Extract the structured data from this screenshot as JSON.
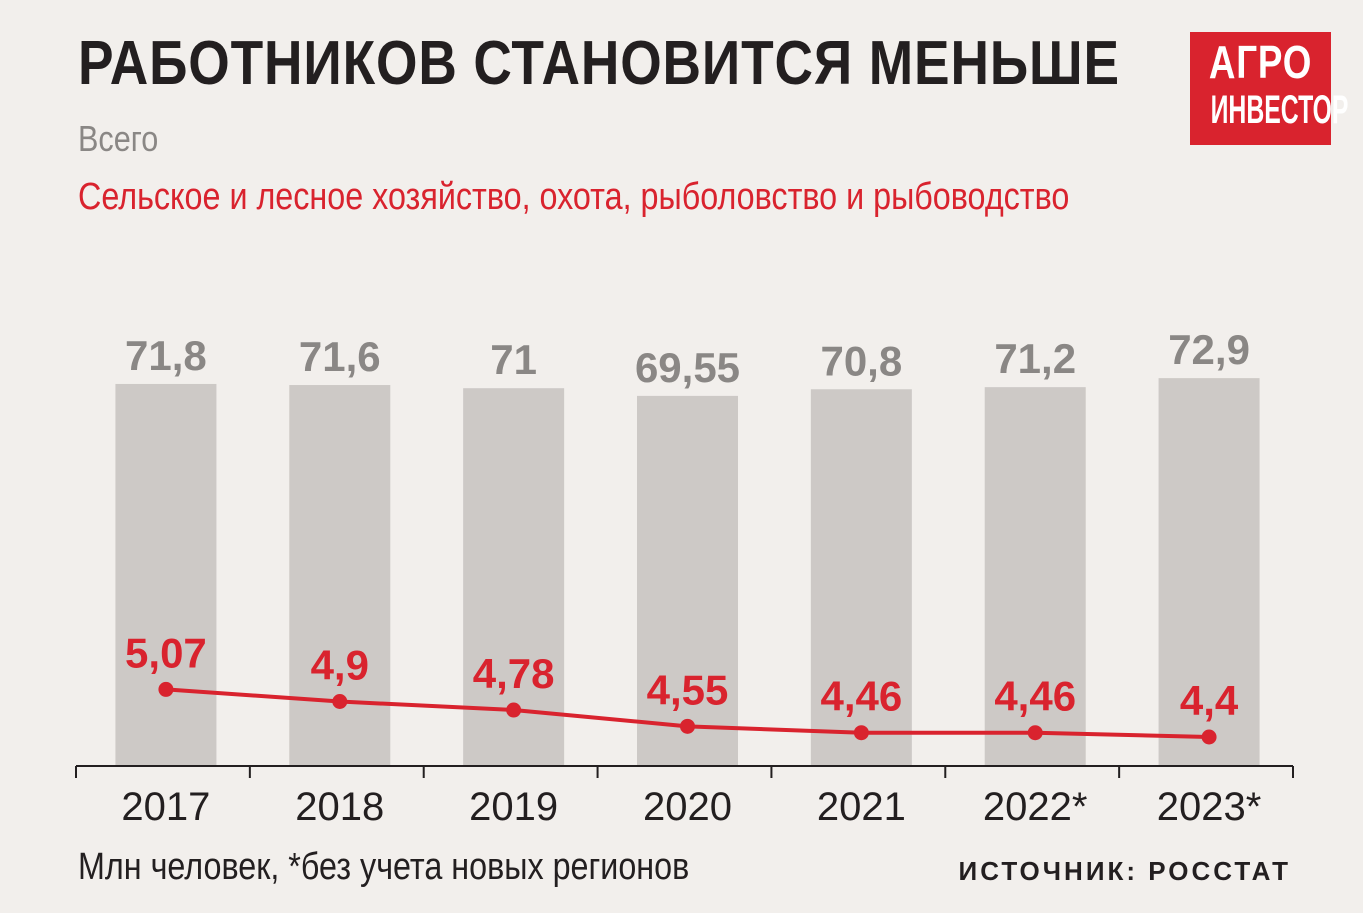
{
  "title": "РАБОТНИКОВ СТАНОВИТСЯ МЕНЬШЕ",
  "logo": {
    "line1": "АГРО",
    "line2": "ИНВЕСТОР"
  },
  "legend": {
    "total": "Всего",
    "agriculture": "Сельское и лесное хозяйство, охота, рыболовство и рыбоводство"
  },
  "footnote": "Млн человек, *без учета новых регионов",
  "source": "ИСТОЧНИК: РОССТАТ",
  "colors": {
    "bars": "#cdc9c6",
    "line": "#d9232e",
    "background": "#f2efec",
    "logo": "#d9232e"
  },
  "chart_data": {
    "type": "bar",
    "categories": [
      "2017",
      "2018",
      "2019",
      "2020",
      "2021",
      "2022*",
      "2023*"
    ],
    "series": [
      {
        "name": "Всего",
        "type": "bar",
        "values": [
          71.8,
          71.6,
          71,
          69.55,
          70.8,
          71.2,
          72.9
        ],
        "labels": [
          "71,8",
          "71,6",
          "71",
          "69,55",
          "70,8",
          "71,2",
          "72,9"
        ]
      },
      {
        "name": "Сельское и лесное хозяйство, охота, рыболовство и рыбоводство",
        "type": "line",
        "values": [
          5.07,
          4.9,
          4.78,
          4.55,
          4.46,
          4.46,
          4.4
        ],
        "labels": [
          "5,07",
          "4,9",
          "4,78",
          "4,55",
          "4,46",
          "4,46",
          "4,4"
        ]
      }
    ],
    "units": "Млн человек"
  }
}
